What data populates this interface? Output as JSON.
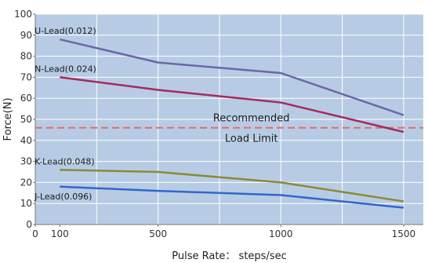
{
  "chart_data": {
    "type": "line",
    "title": "",
    "xlabel": "Pulse Rate： steps/sec",
    "ylabel": "Force(N)",
    "xlim": [
      0,
      1580
    ],
    "ylim": [
      0,
      100
    ],
    "grid": true,
    "legend": "none",
    "x_ticks": [
      {
        "value": 0,
        "label": "0"
      },
      {
        "value": 100,
        "label": "100"
      },
      {
        "value": 500,
        "label": "500"
      },
      {
        "value": 1000,
        "label": "1000"
      },
      {
        "value": 1500,
        "label": "1500"
      }
    ],
    "x_gridlines": [
      0,
      250,
      500,
      750,
      1000,
      1250,
      1500
    ],
    "y_ticks": [
      0,
      10,
      20,
      30,
      40,
      50,
      60,
      70,
      80,
      90,
      100
    ],
    "series": [
      {
        "name": "U-Lead(0.012)",
        "color": "#6b67a8",
        "x": [
          100,
          500,
          1000,
          1500
        ],
        "y": [
          88,
          77,
          72,
          52
        ]
      },
      {
        "name": "N-Lead(0.024)",
        "color": "#a52a5c",
        "x": [
          100,
          500,
          1000,
          1500
        ],
        "y": [
          70,
          64,
          58,
          44
        ]
      },
      {
        "name": "K-Lead(0.048)",
        "color": "#8a8a35",
        "x": [
          100,
          500,
          1000,
          1500
        ],
        "y": [
          26,
          25,
          20,
          11
        ]
      },
      {
        "name": "J-Lead(0.096)",
        "color": "#3366cc",
        "x": [
          100,
          500,
          1000,
          1500
        ],
        "y": [
          18,
          16,
          14,
          8
        ]
      }
    ],
    "series_label_anchor_x": 125,
    "annotations": {
      "limit_value": 46,
      "limit_color": "#e86a6a",
      "line1": "Recommended",
      "line2": "Load Limit"
    },
    "colors": {
      "plot_background": "#b7cce4",
      "grid": "#ffffff",
      "axis": "#777777"
    }
  }
}
